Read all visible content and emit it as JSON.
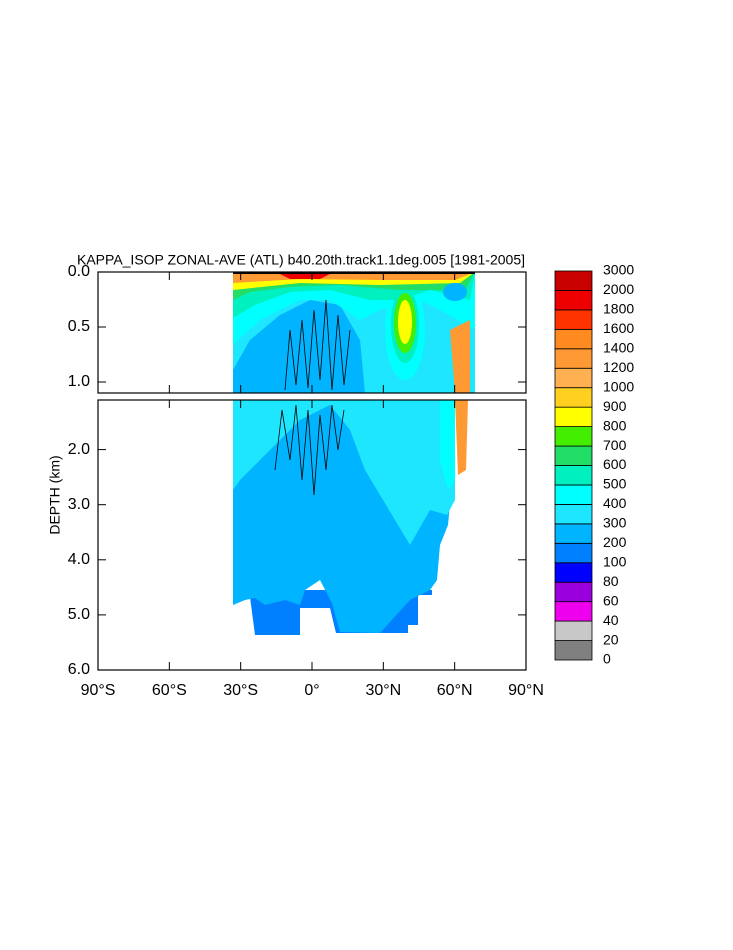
{
  "chart_data": {
    "type": "contour",
    "title": "KAPPA_ISOP ZONAL-AVE (ATL) b40.20th.track1.1deg.005 [1981-2005]",
    "ylabel": "DEPTH (km)",
    "xlim": [
      -90,
      90
    ],
    "xticks": [
      {
        "value": -90,
        "label": "90°S"
      },
      {
        "value": -60,
        "label": "60°S"
      },
      {
        "value": -30,
        "label": "30°S"
      },
      {
        "value": 0,
        "label": "0°"
      },
      {
        "value": 30,
        "label": "30°N"
      },
      {
        "value": 60,
        "label": "60°N"
      },
      {
        "value": 90,
        "label": "90°N"
      }
    ],
    "panels": [
      {
        "ylim": [
          0,
          1.1
        ],
        "yticks": [
          {
            "value": 0,
            "label": "0.0"
          },
          {
            "value": 0.5,
            "label": "0.5"
          },
          {
            "value": 1,
            "label": "1.0"
          }
        ]
      },
      {
        "ylim": [
          1.1,
          6
        ],
        "yticks": [
          {
            "value": 2,
            "label": "2.0"
          },
          {
            "value": 3,
            "label": "3.0"
          },
          {
            "value": 4,
            "label": "4.0"
          },
          {
            "value": 5,
            "label": "5.0"
          },
          {
            "value": 6,
            "label": "6.0"
          }
        ]
      }
    ],
    "colorbar": {
      "levels": [
        0,
        20,
        40,
        60,
        80,
        100,
        200,
        300,
        400,
        500,
        600,
        700,
        800,
        900,
        1000,
        1200,
        1400,
        1600,
        1800,
        2000,
        3000
      ],
      "colors": [
        "#808080",
        "#c8c8c8",
        "#ee00ee",
        "#9900dd",
        "#0000ff",
        "#0080ff",
        "#00b4ff",
        "#1ee6ff",
        "#00ffff",
        "#00f0c0",
        "#22dd66",
        "#44ee00",
        "#ffff00",
        "#ffd020",
        "#ffb050",
        "#ff9933",
        "#ff8a20",
        "#ff3300",
        "#ee0000",
        "#c80000"
      ]
    }
  }
}
